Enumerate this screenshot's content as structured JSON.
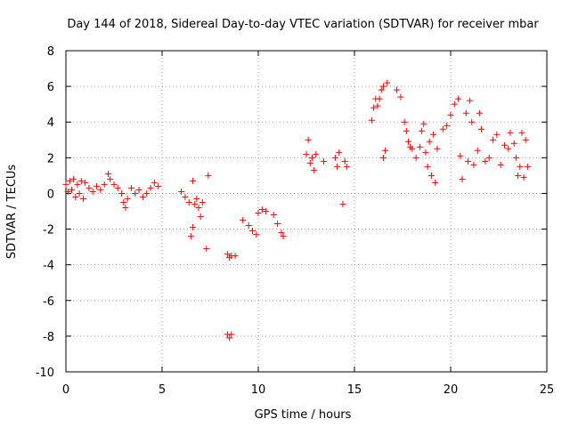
{
  "chart_data": {
    "type": "scatter",
    "title": "Day 144 of 2018, Sidereal Day-to-day VTEC variation (SDTVAR) for receiver mbar",
    "xlabel": "GPS time / hours",
    "ylabel": "SDTVAR / TECUs",
    "xlim": [
      0,
      25
    ],
    "ylim": [
      -10,
      8
    ],
    "xticks": [
      0,
      5,
      10,
      15,
      20,
      25
    ],
    "xtick_labels": [
      "0",
      "5",
      "10",
      "15",
      "20",
      "25"
    ],
    "yticks": [
      -10,
      -8,
      -6,
      -4,
      -2,
      0,
      2,
      4,
      6,
      8
    ],
    "ytick_labels": [
      "-10",
      "-8",
      "-6",
      "-4",
      "-2",
      "0",
      "2",
      "4",
      "6",
      "8"
    ],
    "grid": true,
    "marker": "+",
    "marker_color": "#ff0000",
    "points": [
      [
        0.0,
        0.5
      ],
      [
        0.1,
        0.1
      ],
      [
        0.2,
        0.7
      ],
      [
        0.3,
        0.2
      ],
      [
        0.4,
        0.8
      ],
      [
        0.5,
        -0.2
      ],
      [
        0.6,
        0.5
      ],
      [
        0.7,
        0.0
      ],
      [
        0.8,
        0.7
      ],
      [
        0.9,
        -0.3
      ],
      [
        1.0,
        0.6
      ],
      [
        1.2,
        0.3
      ],
      [
        1.4,
        0.1
      ],
      [
        1.6,
        0.4
      ],
      [
        1.8,
        0.2
      ],
      [
        2.0,
        0.5
      ],
      [
        2.2,
        1.1
      ],
      [
        2.3,
        0.8
      ],
      [
        2.5,
        0.5
      ],
      [
        2.7,
        0.3
      ],
      [
        2.9,
        0.0
      ],
      [
        3.0,
        -0.5
      ],
      [
        3.1,
        -0.8
      ],
      [
        3.2,
        -0.3
      ],
      [
        3.4,
        0.3
      ],
      [
        3.6,
        0.0
      ],
      [
        3.8,
        0.2
      ],
      [
        4.0,
        -0.2
      ],
      [
        4.2,
        0.0
      ],
      [
        4.4,
        0.3
      ],
      [
        4.6,
        0.6
      ],
      [
        4.8,
        0.4
      ],
      [
        6.0,
        0.1
      ],
      [
        6.2,
        -0.2
      ],
      [
        6.4,
        -0.5
      ],
      [
        6.5,
        -2.4
      ],
      [
        6.6,
        -1.9
      ],
      [
        6.6,
        0.7
      ],
      [
        6.7,
        -0.6
      ],
      [
        6.8,
        -0.3
      ],
      [
        6.9,
        -0.8
      ],
      [
        7.0,
        -1.3
      ],
      [
        7.1,
        -0.5
      ],
      [
        7.3,
        -3.1
      ],
      [
        7.4,
        1.0
      ],
      [
        8.4,
        -3.4
      ],
      [
        8.5,
        -3.6
      ],
      [
        8.6,
        -3.5
      ],
      [
        8.8,
        -3.5
      ],
      [
        8.4,
        -7.9
      ],
      [
        8.5,
        -8.1
      ],
      [
        8.6,
        -7.9
      ],
      [
        9.2,
        -1.5
      ],
      [
        9.5,
        -1.8
      ],
      [
        9.7,
        -2.1
      ],
      [
        9.9,
        -2.3
      ],
      [
        10.0,
        -1.1
      ],
      [
        10.2,
        -0.9
      ],
      [
        10.4,
        -1.0
      ],
      [
        10.8,
        -1.2
      ],
      [
        11.0,
        -1.7
      ],
      [
        11.2,
        -2.2
      ],
      [
        11.3,
        -2.4
      ],
      [
        12.5,
        2.2
      ],
      [
        12.6,
        3.0
      ],
      [
        12.7,
        1.7
      ],
      [
        12.8,
        2.0
      ],
      [
        12.9,
        1.3
      ],
      [
        13.0,
        2.2
      ],
      [
        13.4,
        1.8
      ],
      [
        14.0,
        2.0
      ],
      [
        14.1,
        1.5
      ],
      [
        14.2,
        2.3
      ],
      [
        14.4,
        -0.6
      ],
      [
        14.5,
        1.8
      ],
      [
        14.6,
        1.5
      ],
      [
        15.9,
        4.1
      ],
      [
        16.0,
        4.8
      ],
      [
        16.1,
        5.3
      ],
      [
        16.2,
        4.9
      ],
      [
        16.3,
        5.3
      ],
      [
        16.4,
        5.8
      ],
      [
        16.5,
        6.0
      ],
      [
        16.5,
        2.0
      ],
      [
        16.6,
        2.4
      ],
      [
        16.7,
        6.2
      ],
      [
        17.2,
        5.8
      ],
      [
        17.4,
        5.4
      ],
      [
        17.6,
        4.0
      ],
      [
        17.7,
        3.5
      ],
      [
        17.8,
        2.9
      ],
      [
        17.9,
        2.6
      ],
      [
        18.0,
        2.5
      ],
      [
        18.2,
        2.0
      ],
      [
        18.4,
        2.6
      ],
      [
        18.5,
        3.5
      ],
      [
        18.6,
        3.9
      ],
      [
        18.7,
        2.3
      ],
      [
        18.8,
        1.5
      ],
      [
        18.9,
        2.9
      ],
      [
        19.0,
        1.0
      ],
      [
        19.1,
        3.3
      ],
      [
        19.2,
        0.6
      ],
      [
        19.3,
        2.5
      ],
      [
        19.6,
        3.6
      ],
      [
        19.8,
        3.8
      ],
      [
        20.0,
        4.4
      ],
      [
        20.2,
        5.0
      ],
      [
        20.4,
        5.3
      ],
      [
        20.5,
        2.1
      ],
      [
        20.6,
        0.8
      ],
      [
        20.8,
        4.5
      ],
      [
        20.9,
        1.8
      ],
      [
        21.0,
        5.2
      ],
      [
        21.1,
        4.0
      ],
      [
        21.2,
        1.6
      ],
      [
        21.4,
        2.4
      ],
      [
        21.5,
        4.5
      ],
      [
        21.6,
        3.6
      ],
      [
        21.8,
        1.8
      ],
      [
        22.0,
        2.0
      ],
      [
        22.2,
        3.0
      ],
      [
        22.4,
        3.3
      ],
      [
        22.6,
        1.6
      ],
      [
        22.8,
        2.7
      ],
      [
        23.0,
        2.5
      ],
      [
        23.1,
        3.4
      ],
      [
        23.3,
        2.8
      ],
      [
        23.4,
        2.0
      ],
      [
        23.5,
        1.0
      ],
      [
        23.6,
        1.5
      ],
      [
        23.7,
        3.4
      ],
      [
        23.8,
        0.9
      ],
      [
        23.9,
        3.0
      ],
      [
        24.0,
        1.5
      ]
    ]
  }
}
